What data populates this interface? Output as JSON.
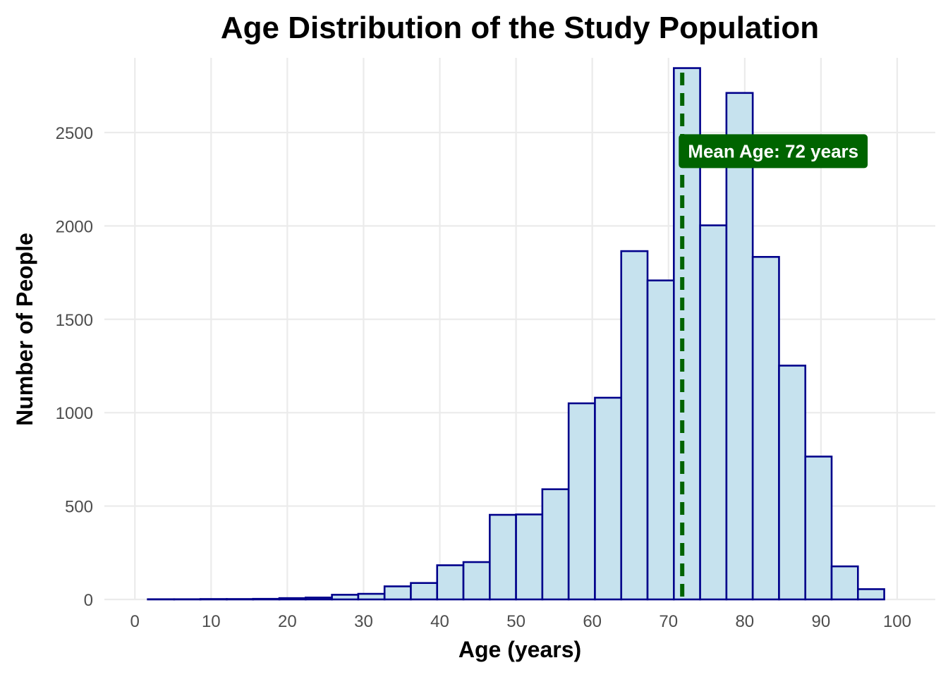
{
  "chart_data": {
    "type": "bar",
    "title": "Age Distribution of the Study Population",
    "xlabel": "Age (years)",
    "ylabel": "Number of People",
    "xlim": [
      -4,
      105
    ],
    "ylim": [
      0,
      2900
    ],
    "x_ticks": [
      0,
      10,
      20,
      30,
      40,
      50,
      60,
      70,
      80,
      90,
      100
    ],
    "y_ticks": [
      0,
      500,
      1000,
      1500,
      2000,
      2500
    ],
    "grid": true,
    "legend": "none",
    "bin_width": 3.45,
    "bins": [
      {
        "start": 1.7,
        "count": 1
      },
      {
        "start": 5.15,
        "count": 1
      },
      {
        "start": 8.6,
        "count": 2
      },
      {
        "start": 12.05,
        "count": 2
      },
      {
        "start": 15.5,
        "count": 3
      },
      {
        "start": 18.95,
        "count": 7
      },
      {
        "start": 22.4,
        "count": 10
      },
      {
        "start": 25.85,
        "count": 25
      },
      {
        "start": 29.3,
        "count": 30
      },
      {
        "start": 32.75,
        "count": 70
      },
      {
        "start": 36.2,
        "count": 88
      },
      {
        "start": 39.65,
        "count": 183
      },
      {
        "start": 43.1,
        "count": 200
      },
      {
        "start": 46.55,
        "count": 453
      },
      {
        "start": 50.0,
        "count": 455
      },
      {
        "start": 53.45,
        "count": 590
      },
      {
        "start": 56.9,
        "count": 1050
      },
      {
        "start": 60.35,
        "count": 1080
      },
      {
        "start": 63.8,
        "count": 1865
      },
      {
        "start": 67.25,
        "count": 1708
      },
      {
        "start": 70.7,
        "count": 2845
      },
      {
        "start": 74.15,
        "count": 2003
      },
      {
        "start": 77.6,
        "count": 2712
      },
      {
        "start": 81.05,
        "count": 1834
      },
      {
        "start": 84.5,
        "count": 1252
      },
      {
        "start": 87.95,
        "count": 765
      },
      {
        "start": 91.4,
        "count": 177
      },
      {
        "start": 94.85,
        "count": 55
      }
    ],
    "mean": {
      "value": 71.8,
      "label": "Mean Age: 72 years",
      "label_y": 2400
    },
    "colors": {
      "bar_fill": "#c6e2ee",
      "bar_stroke": "#00008b",
      "mean_line": "#006400",
      "label_bg": "#006400",
      "label_text": "#ffffff"
    }
  }
}
